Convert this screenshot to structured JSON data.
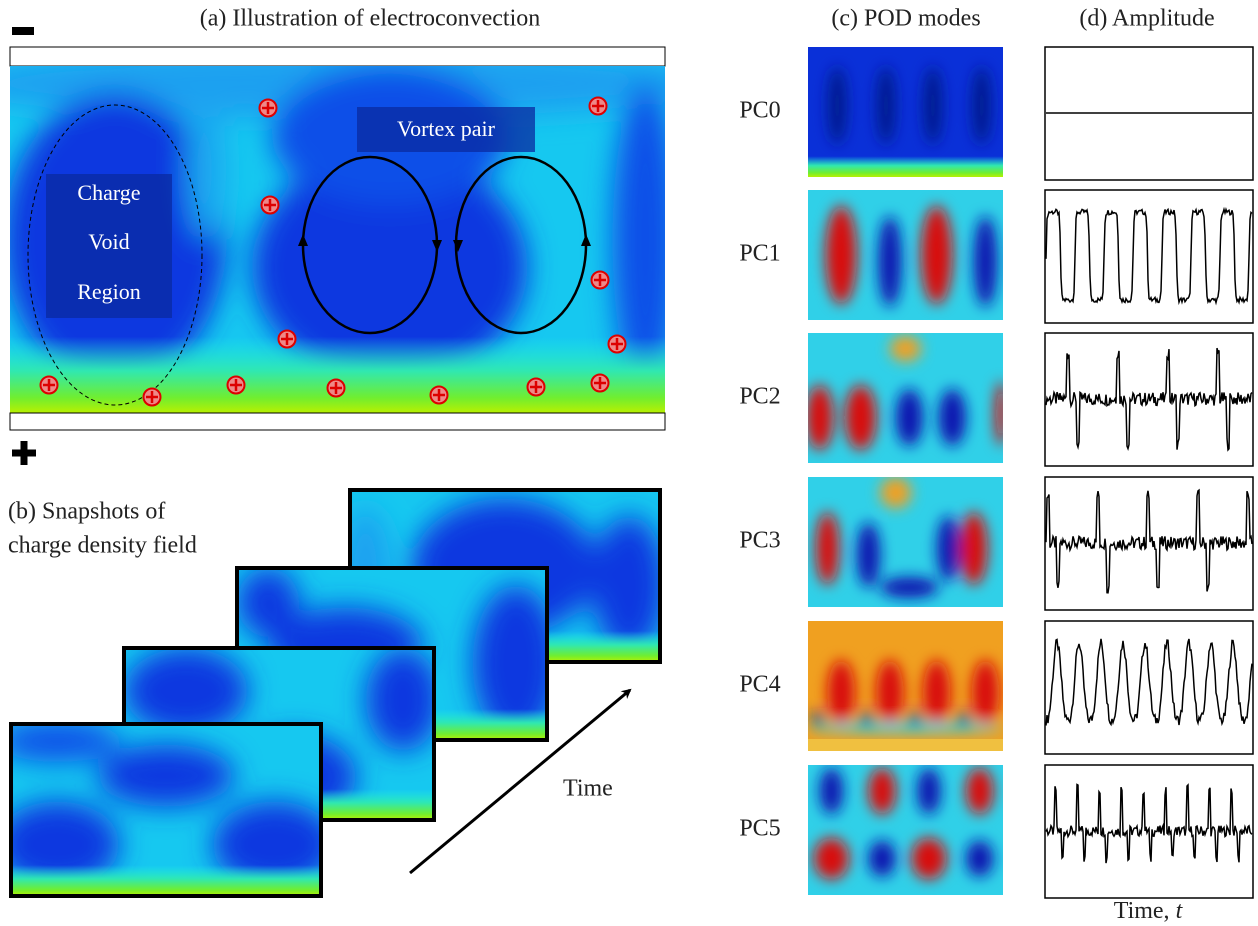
{
  "panel_a": {
    "title": "(a) Illustration of electroconvection",
    "void_label": [
      "Charge",
      "Void",
      "Region"
    ],
    "vortex_label": "Vortex pair"
  },
  "panel_b": {
    "title": [
      "(b) Snapshots of",
      "charge density field"
    ],
    "time_label": "Time"
  },
  "panel_c": {
    "title": "(c) POD modes",
    "modes": [
      "PC0",
      "PC1",
      "PC2",
      "PC3",
      "PC4",
      "PC5"
    ]
  },
  "panel_d": {
    "title": "(d) Amplitude",
    "x_label": "Time,",
    "x_label_var": "t"
  }
}
